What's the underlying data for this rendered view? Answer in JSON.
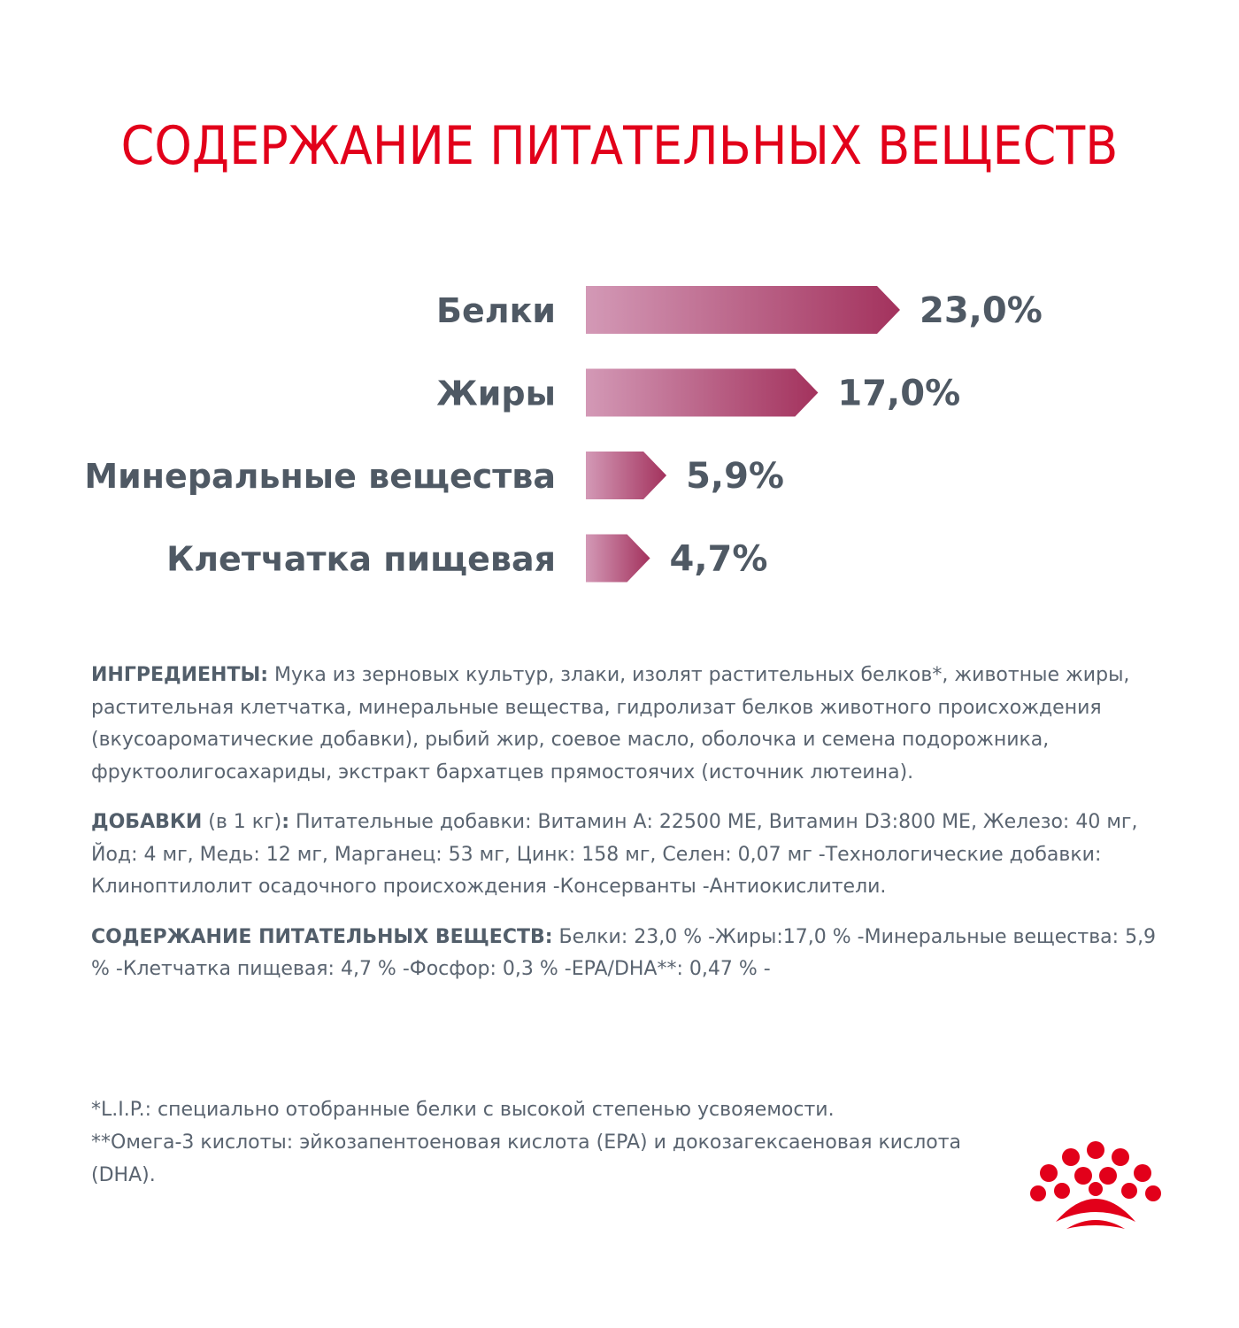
{
  "header": {
    "title": "СОДЕРЖАНИЕ ПИТАТЕЛЬНЫХ ВЕЩЕСТВ"
  },
  "chart_data": {
    "type": "bar",
    "orientation": "horizontal",
    "categories": [
      "Белки",
      "Жиры",
      "Минеральные вещества",
      "Клетчатка пищевая"
    ],
    "values": [
      23.0,
      17.0,
      5.9,
      4.7
    ],
    "value_labels": [
      "23,0%",
      "17,0%",
      "5,9%",
      "4,7%"
    ],
    "title": "",
    "xlabel": "",
    "ylabel": "",
    "grid": false,
    "legend": "none",
    "colors": {
      "bar_start": "#d399b6",
      "bar_end": "#a3325d",
      "label": "#4f5964"
    }
  },
  "ingredients": {
    "label": "ИНГРЕДИЕНТЫ:",
    "text": " Мука из зерновых культур, злаки, изолят растительных белков*, животные жиры, растительная клетчатка, минеральные вещества, гидролизат белков животного происхождения (вкусоароматические добавки), рыбий жир, соевое масло, оболочка и семена подорожника, фруктоолигосахариды, экстракт бархатцев прямостоячих (источник лютеина)."
  },
  "additives": {
    "label": "ДОБАВКИ",
    "unit": " (в 1 кг)",
    "colon": ":",
    "text": " Питательные добавки: Витамин А: 22500 МЕ, Витамин D3:800 МЕ, Железо: 40 мг, Йод: 4 мг, Медь: 12 мг, Марганец: 53 мг, Цинк: 158 мг, Селен: 0,07 мг -Технологические добавки: Клиноптилолит осадочного происхождения -Консерванты -Антиокислители."
  },
  "nutrients": {
    "label": "СОДЕРЖАНИЕ ПИТАТЕЛЬНЫХ ВЕЩЕСТВ:",
    "text": " Белки: 23,0 % -Жиры:17,0 % -Минеральные вещества: 5,9 % -Клетчатка пищевая: 4,7 % -Фосфор: 0,3 % -EPA/DHA**: 0,47 % -"
  },
  "footnotes": {
    "lip": "*L.I.P.: специально отобранные белки с высокой степенью усвояемости.",
    "omega": "**Омега-3 кислоты: эйкозапентоеновая кислота (EPA) и докозагексаеновая кислота (DHA)."
  },
  "logo": {
    "icon": "crown-icon",
    "color": "#e2001a"
  }
}
